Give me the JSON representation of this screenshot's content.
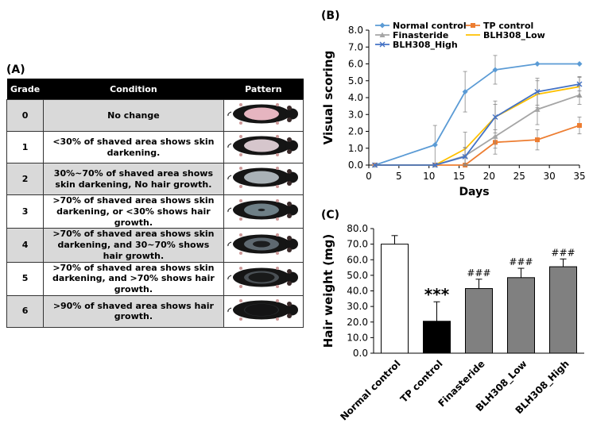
{
  "panel_labels": {
    "a": "(A)",
    "b": "(B)",
    "c": "(C)"
  },
  "grade_table": {
    "headers": [
      "Grade",
      "Condition",
      "Pattern"
    ],
    "rows": [
      {
        "grade": "0",
        "condition": "No change",
        "skin": "#e6b5c0",
        "dark": 0.0,
        "hair": 0.0
      },
      {
        "grade": "1",
        "condition": "<30% of shaved area shows skin darkening.",
        "skin": "#d6c6cc",
        "dark": 0.2,
        "hair": 0.0
      },
      {
        "grade": "2",
        "condition": "30%~70% of shaved area shows skin darkening, No hair growth.",
        "skin": "#a9b1b6",
        "dark": 0.5,
        "hair": 0.0
      },
      {
        "grade": "3",
        "condition": ">70% of shaved area shows skin darkening, or <30% shows hair growth.",
        "skin": "#6e7f86",
        "dark": 0.8,
        "hair": 0.2
      },
      {
        "grade": "4",
        "condition": ">70% of shaved area shows skin darkening, and 30~70% shows hair growth.",
        "skin": "#5e6870",
        "dark": 0.85,
        "hair": 0.5
      },
      {
        "grade": "5",
        "condition": ">70% of shaved area shows skin darkening, and >70% shows hair growth.",
        "skin": "#4a5055",
        "dark": 0.9,
        "hair": 0.75
      },
      {
        "grade": "6",
        "condition": ">90% of shaved area shows hair growth.",
        "skin": "#2a2d30",
        "dark": 1.0,
        "hair": 0.95
      }
    ]
  },
  "chart_data": [
    {
      "type": "line",
      "title": "(B)",
      "xlabel": "Days",
      "ylabel": "Visual scoring",
      "xlim": [
        0,
        35
      ],
      "ylim": [
        0,
        8
      ],
      "x_ticks": [
        0,
        5,
        10,
        15,
        20,
        25,
        30,
        35
      ],
      "y_ticks": [
        0,
        1,
        2,
        3,
        4,
        5,
        6,
        7,
        8
      ],
      "y_tick_labels": [
        "0.0",
        "1.0",
        "2.0",
        "3.0",
        "4.0",
        "5.0",
        "6.0",
        "7.0",
        "8.0"
      ],
      "x": [
        1,
        11,
        16,
        21,
        28,
        35
      ],
      "grid": false,
      "legend_position": "top",
      "series": [
        {
          "name": "Normal control",
          "color": "#5b9bd5",
          "marker": "diamond",
          "values": [
            0.0,
            1.2,
            4.35,
            5.65,
            6.0,
            6.0
          ],
          "errors": [
            0.05,
            1.15,
            1.2,
            0.85,
            0.0,
            0.0
          ]
        },
        {
          "name": "TP control",
          "color": "#ed7d31",
          "marker": "square",
          "values": [
            0.0,
            0.0,
            0.0,
            1.35,
            1.5,
            2.35
          ],
          "errors": [
            0.0,
            0.0,
            0.0,
            0.35,
            0.6,
            0.5
          ]
        },
        {
          "name": "Finasteride",
          "color": "#a5a5a5",
          "marker": "triangle",
          "values": [
            0.0,
            0.0,
            0.55,
            1.7,
            3.3,
            4.15
          ],
          "errors": [
            0.0,
            0.0,
            0.5,
            1.05,
            0.9,
            0.55
          ]
        },
        {
          "name": "BLH308_Low",
          "color": "#ffc000",
          "marker": "none",
          "values": [
            0.0,
            0.0,
            0.95,
            2.85,
            4.2,
            4.65
          ],
          "errors": [
            0.0,
            0.0,
            1.0,
            0.95,
            0.8,
            0.6
          ]
        },
        {
          "name": "BLH308_High",
          "color": "#4472c4",
          "marker": "x",
          "values": [
            0.0,
            0.0,
            0.5,
            2.85,
            4.35,
            4.8
          ],
          "errors": [
            0.0,
            0.0,
            0.5,
            0.75,
            0.8,
            0.4
          ]
        }
      ]
    },
    {
      "type": "bar",
      "title": "(C)",
      "xlabel": "",
      "ylabel": "Hair weight (mg)",
      "ylim": [
        0,
        80
      ],
      "y_ticks": [
        0,
        10,
        20,
        30,
        40,
        50,
        60,
        70,
        80
      ],
      "y_tick_labels": [
        "0.0",
        "10.0",
        "20.0",
        "30.0",
        "40.0",
        "50.0",
        "60.0",
        "70.0",
        "80.0"
      ],
      "categories": [
        "Normal control",
        "TP control",
        "Finasteride",
        "BLH308_Low",
        "BLH308_High"
      ],
      "values": [
        70.0,
        20.5,
        41.5,
        48.5,
        55.5
      ],
      "errors": [
        5.5,
        12.5,
        6.0,
        6.0,
        5.0
      ],
      "colors": [
        "#ffffff",
        "#000000",
        "#808080",
        "#808080",
        "#808080"
      ],
      "annotations": [
        "",
        "***",
        "###",
        "###",
        "###"
      ]
    }
  ]
}
